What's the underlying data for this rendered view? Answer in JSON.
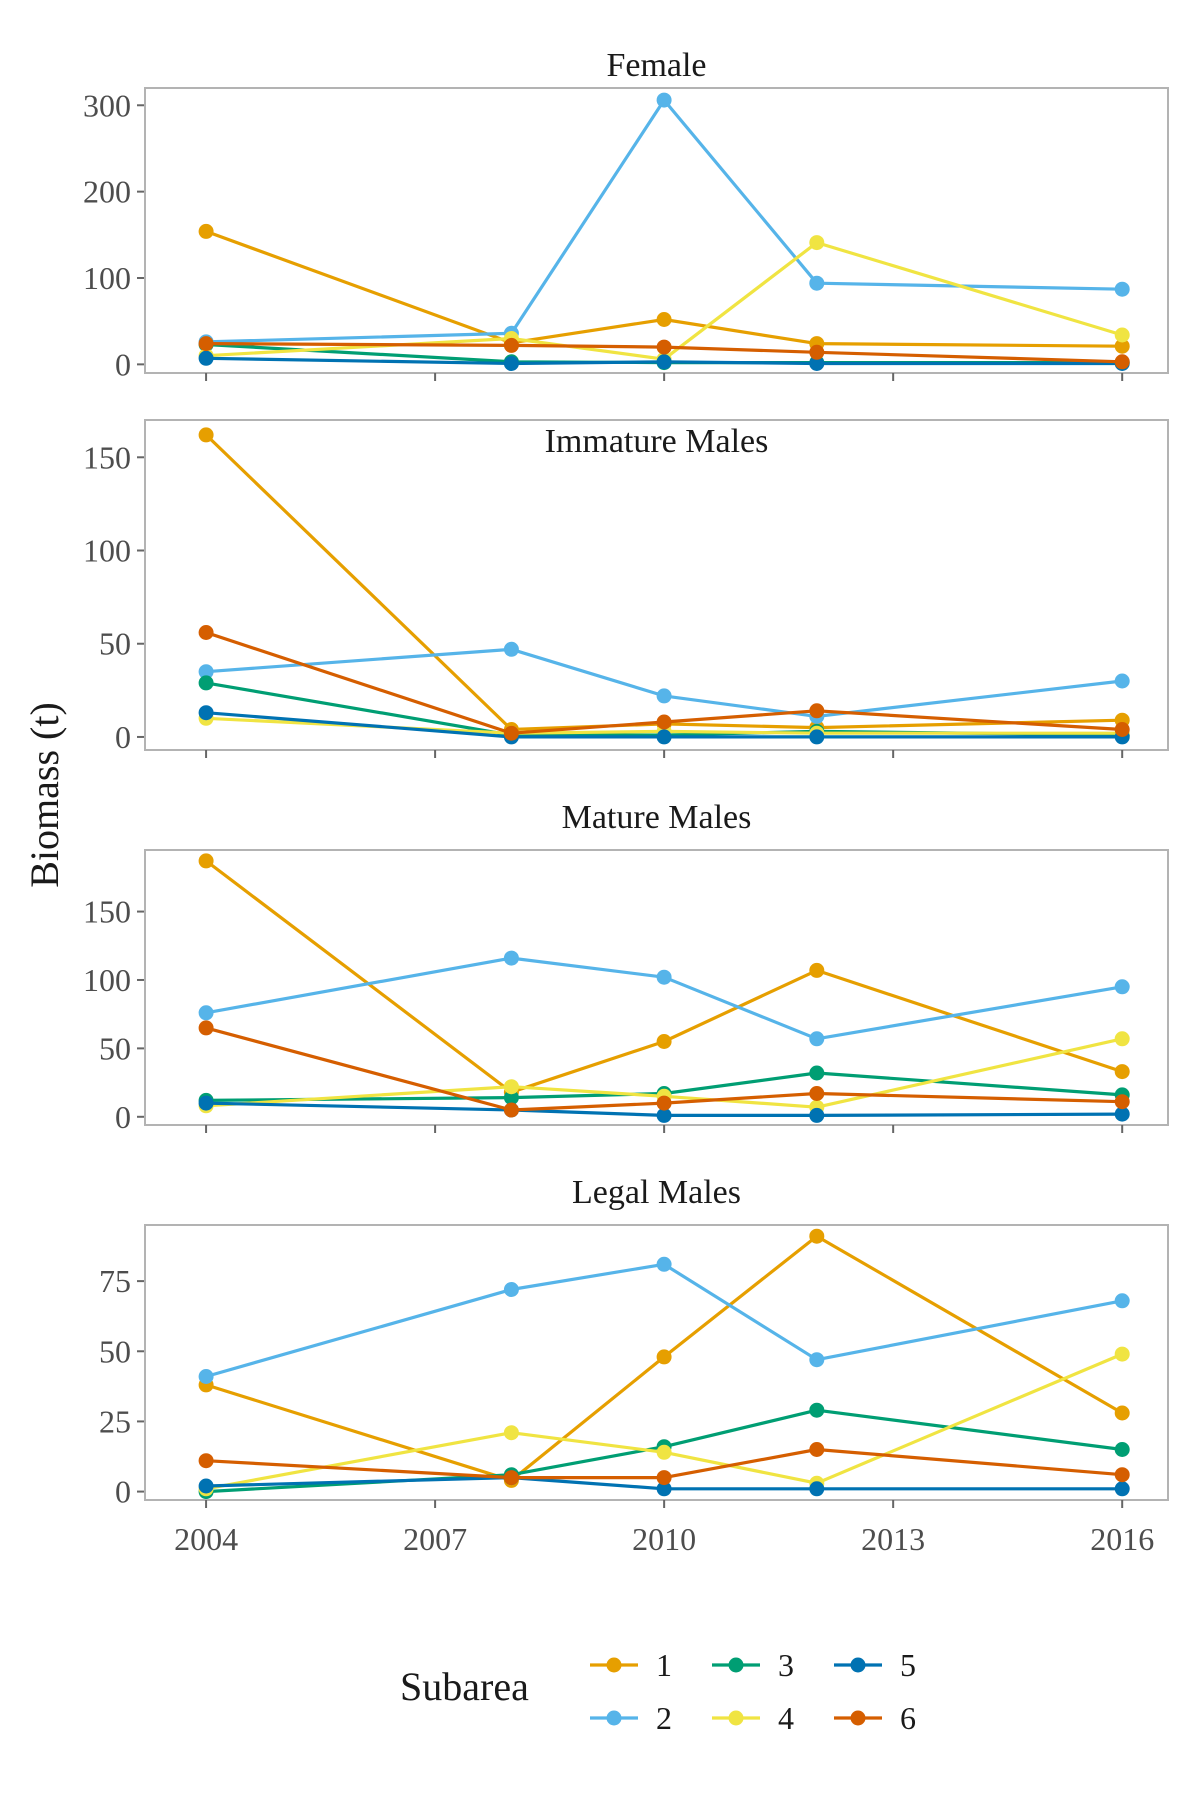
{
  "chart_data": {
    "type": "line",
    "ylabel": "Biomass (t)",
    "xlabel": "",
    "x_ticks": [
      2004,
      2007,
      2010,
      2013,
      2016
    ],
    "xlim": [
      2003.2,
      2016.6
    ],
    "legend": {
      "title": "Subarea",
      "placement": "bottom",
      "entries": [
        "1",
        "2",
        "3",
        "4",
        "5",
        "6"
      ]
    },
    "colors": {
      "1": "#E69F00",
      "2": "#56B4E9",
      "3": "#009E73",
      "4": "#F0E442",
      "5": "#0072B2",
      "6": "#D55E00"
    },
    "years": [
      2004,
      2008,
      2010,
      2012,
      2016
    ],
    "panels": [
      {
        "title": "Female",
        "ylim": [
          -10,
          320
        ],
        "y_ticks": [
          0,
          100,
          200,
          300
        ],
        "series": [
          {
            "name": "1",
            "values": [
              154,
              25,
              52,
              24,
              21
            ]
          },
          {
            "name": "2",
            "values": [
              26,
              36,
              306,
              94,
              87
            ]
          },
          {
            "name": "3",
            "values": [
              23,
              3,
              2,
              2,
              2
            ]
          },
          {
            "name": "4",
            "values": [
              10,
              30,
              6,
              141,
              34
            ]
          },
          {
            "name": "5",
            "values": [
              7,
              1,
              3,
              1,
              1
            ]
          },
          {
            "name": "6",
            "values": [
              24,
              22,
              20,
              14,
              3
            ]
          }
        ]
      },
      {
        "title": "Immature Males",
        "ylim": [
          -7,
          170
        ],
        "y_ticks": [
          0,
          50,
          100,
          150
        ],
        "series": [
          {
            "name": "1",
            "values": [
              162,
              4,
              7,
              5,
              9
            ]
          },
          {
            "name": "2",
            "values": [
              35,
              47,
              22,
              11,
              30
            ]
          },
          {
            "name": "3",
            "values": [
              29,
              1,
              1,
              3,
              1
            ]
          },
          {
            "name": "4",
            "values": [
              10,
              2,
              3,
              2,
              2
            ]
          },
          {
            "name": "5",
            "values": [
              13,
              0,
              0,
              0,
              0
            ]
          },
          {
            "name": "6",
            "values": [
              56,
              2,
              8,
              14,
              4
            ]
          }
        ]
      },
      {
        "title": "Mature Males",
        "ylim": [
          -6,
          195
        ],
        "y_ticks": [
          0,
          50,
          100,
          150
        ],
        "series": [
          {
            "name": "1",
            "values": [
              187,
              18,
              55,
              107,
              33
            ]
          },
          {
            "name": "2",
            "values": [
              76,
              116,
              102,
              57,
              95
            ]
          },
          {
            "name": "3",
            "values": [
              12,
              14,
              17,
              32,
              16
            ]
          },
          {
            "name": "4",
            "values": [
              8,
              22,
              15,
              7,
              57
            ]
          },
          {
            "name": "5",
            "values": [
              10,
              5,
              1,
              1,
              2
            ]
          },
          {
            "name": "6",
            "values": [
              65,
              5,
              10,
              17,
              11
            ]
          }
        ]
      },
      {
        "title": "Legal Males",
        "ylim": [
          -3,
          95
        ],
        "y_ticks": [
          0,
          25,
          50,
          75
        ],
        "series": [
          {
            "name": "1",
            "values": [
              38,
              4,
              48,
              91,
              28
            ]
          },
          {
            "name": "2",
            "values": [
              41,
              72,
              81,
              47,
              68
            ]
          },
          {
            "name": "3",
            "values": [
              0,
              6,
              16,
              29,
              15
            ]
          },
          {
            "name": "4",
            "values": [
              1,
              21,
              14,
              3,
              49
            ]
          },
          {
            "name": "5",
            "values": [
              2,
              5,
              1,
              1,
              1
            ]
          },
          {
            "name": "6",
            "values": [
              11,
              5,
              5,
              15,
              6
            ]
          }
        ]
      }
    ]
  }
}
